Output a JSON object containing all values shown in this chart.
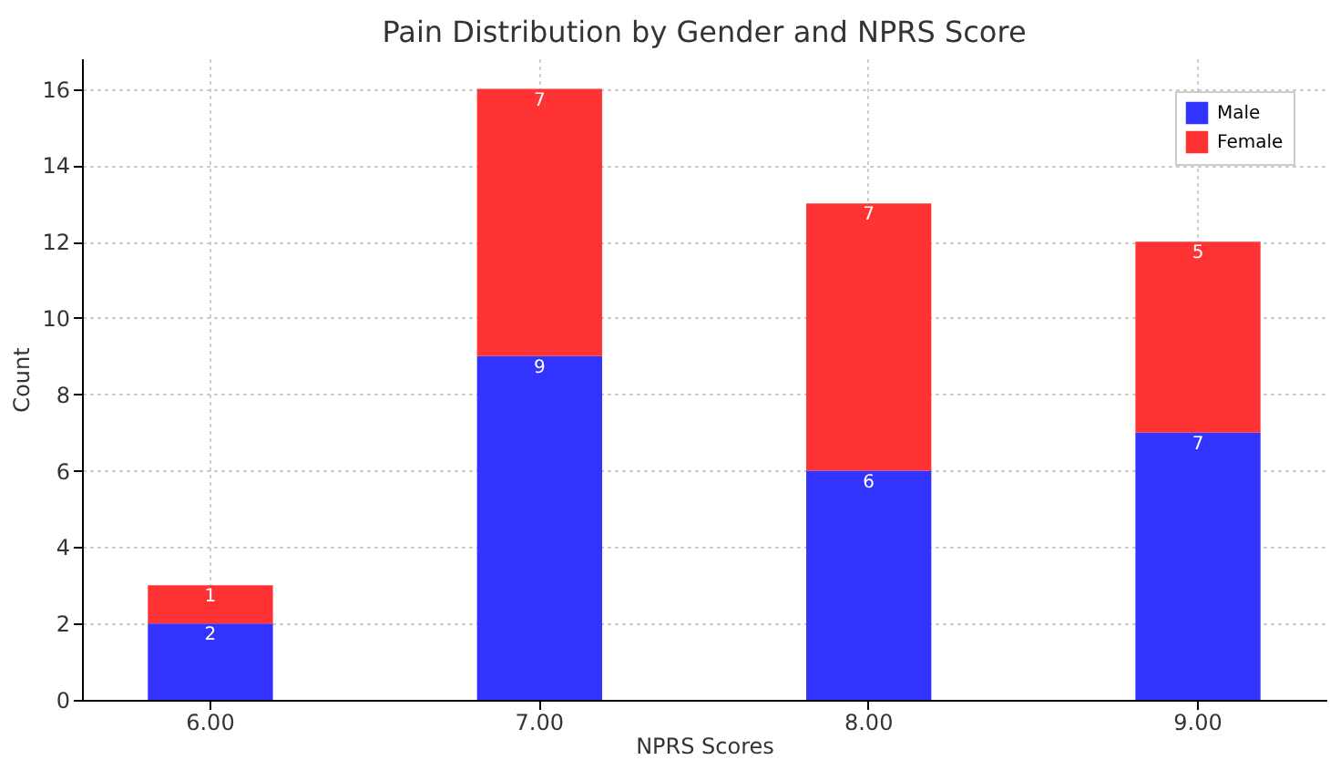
{
  "chart_data": {
    "type": "bar",
    "title": "Pain Distribution by Gender and NPRS Score",
    "xlabel": "NPRS Scores",
    "ylabel": "Count",
    "categories": [
      "6.00",
      "7.00",
      "8.00",
      "9.00"
    ],
    "series": [
      {
        "name": "Male",
        "color": "#3333ff",
        "values": [
          2,
          9,
          6,
          7
        ]
      },
      {
        "name": "Female",
        "color": "#ff3333",
        "values": [
          1,
          7,
          7,
          5
        ]
      }
    ],
    "stacked": true,
    "ylim": [
      0,
      16.8
    ],
    "yticks": [
      0,
      2,
      4,
      6,
      8,
      10,
      12,
      14,
      16
    ],
    "grid": true,
    "legend": "top right",
    "data_labels": true
  }
}
